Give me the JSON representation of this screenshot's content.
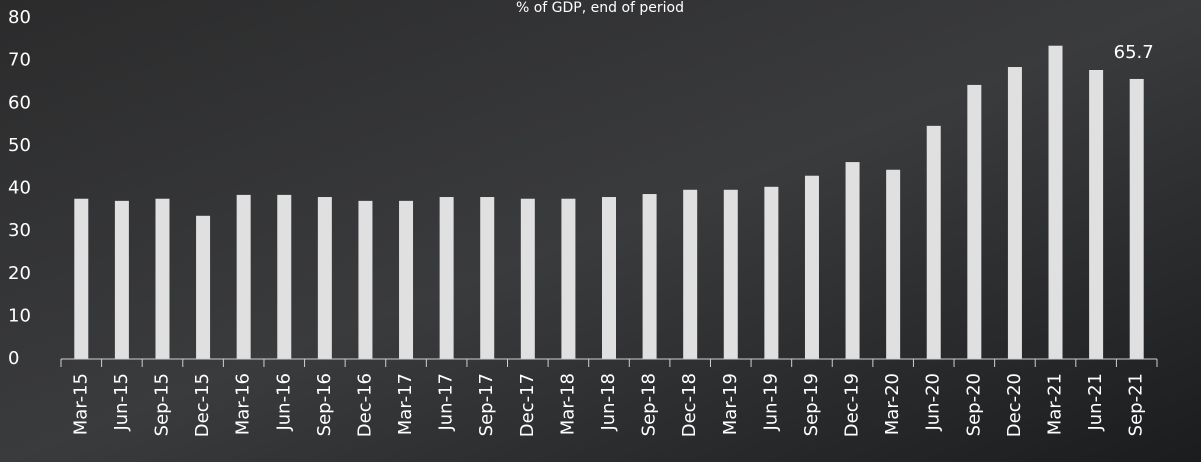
{
  "chart_data": {
    "type": "bar",
    "subtitle": "% of GDP, end of period",
    "categories": [
      "Mar-15",
      "Jun-15",
      "Sep-15",
      "Dec-15",
      "Mar-16",
      "Jun-16",
      "Sep-16",
      "Dec-16",
      "Mar-17",
      "Jun-17",
      "Sep-17",
      "Dec-17",
      "Mar-18",
      "Jun-18",
      "Sep-18",
      "Dec-18",
      "Mar-19",
      "Jun-19",
      "Sep-19",
      "Dec-19",
      "Mar-20",
      "Jun-20",
      "Sep-20",
      "Dec-20",
      "Mar-21",
      "Jun-21",
      "Sep-21"
    ],
    "values": [
      37.6,
      37.1,
      37.6,
      33.6,
      38.5,
      38.5,
      38.0,
      37.1,
      37.1,
      38.0,
      38.0,
      37.6,
      37.6,
      38.0,
      38.7,
      39.7,
      39.7,
      40.4,
      43.0,
      46.2,
      44.4,
      54.7,
      64.3,
      68.5,
      73.5,
      67.8,
      65.7
    ],
    "color": "#e0e0e0",
    "ylim": [
      0,
      80
    ],
    "yticks": [
      0,
      10,
      20,
      30,
      40,
      50,
      60,
      70,
      80
    ],
    "grid": false
  }
}
